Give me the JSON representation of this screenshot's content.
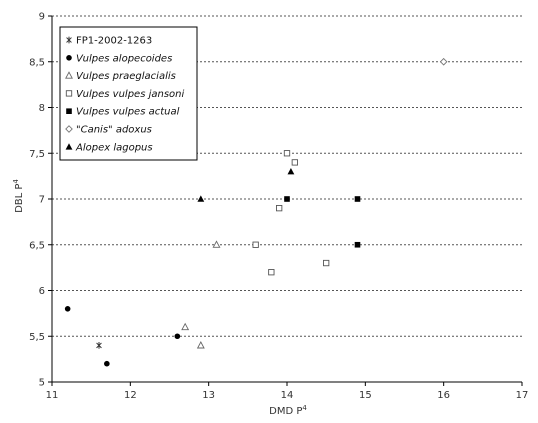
{
  "chart_data": {
    "type": "scatter",
    "xlabel": "DMD P",
    "xlabel_sup": "4",
    "ylabel": "DBL P",
    "ylabel_sup": "4",
    "xlim": [
      11,
      17
    ],
    "ylim": [
      5,
      9
    ],
    "x_ticks": [
      "11",
      "12",
      "13",
      "14",
      "15",
      "16",
      "17"
    ],
    "y_ticks": [
      "5",
      "5,5",
      "6",
      "6,5",
      "7",
      "7,5",
      "8",
      "8,5",
      "9"
    ],
    "grid": "horizontal dashed",
    "legend_position": "top-left",
    "series": [
      {
        "name": "FP1-2002-1263",
        "marker": "asterisk",
        "italic": false,
        "points": [
          [
            11.6,
            5.4
          ]
        ]
      },
      {
        "name": "Vulpes alopecoides",
        "marker": "circle-filled",
        "italic": true,
        "points": [
          [
            11.2,
            5.8
          ],
          [
            11.7,
            5.2
          ],
          [
            12.6,
            5.5
          ]
        ]
      },
      {
        "name": "Vulpes praeglacialis",
        "marker": "triangle-open",
        "italic": true,
        "points": [
          [
            12.7,
            5.6
          ],
          [
            12.9,
            5.4
          ],
          [
            13.1,
            6.5
          ]
        ]
      },
      {
        "name": "Vulpes vulpes jansoni",
        "marker": "square-open",
        "italic": true,
        "points": [
          [
            13.6,
            6.5
          ],
          [
            13.8,
            6.2
          ],
          [
            13.9,
            6.9
          ],
          [
            14.0,
            7.5
          ],
          [
            14.1,
            7.4
          ],
          [
            14.5,
            6.3
          ]
        ]
      },
      {
        "name": "Vulpes vulpes actual",
        "marker": "square-filled",
        "italic": true,
        "points": [
          [
            14.0,
            7.0
          ],
          [
            14.9,
            7.0
          ],
          [
            14.9,
            6.5
          ]
        ]
      },
      {
        "name": "\"Canis\" adoxus",
        "marker": "diamond-open",
        "italic": true,
        "points": [
          [
            16.0,
            8.5
          ]
        ]
      },
      {
        "name": "Alopex lagopus",
        "marker": "triangle-filled",
        "italic": true,
        "points": [
          [
            12.9,
            7.0
          ],
          [
            14.05,
            7.3
          ]
        ]
      }
    ]
  }
}
